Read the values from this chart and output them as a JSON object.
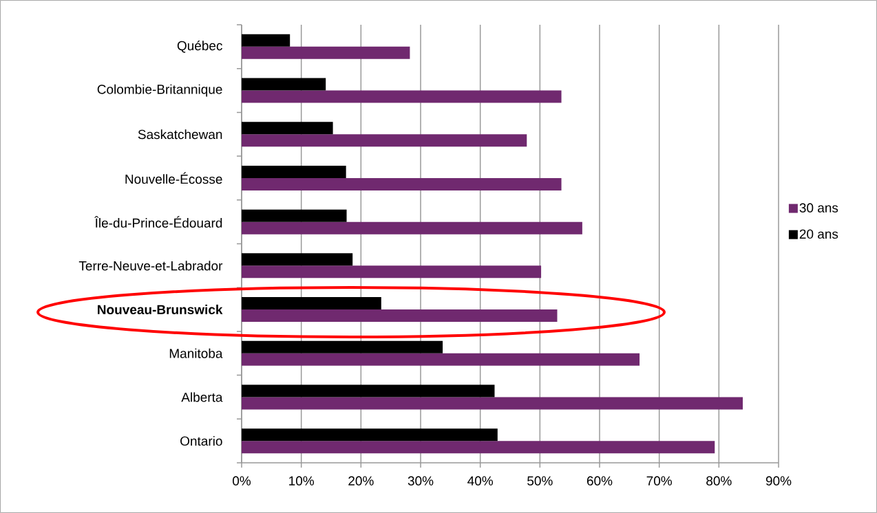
{
  "chart_data": {
    "type": "bar",
    "orientation": "horizontal",
    "categories": [
      "Québec",
      "Colombie-Britannique",
      "Saskatchewan",
      "Nouvelle-Écosse",
      "Île-du-Prince-Édouard",
      "Terre-Neuve-et-Labrador",
      "**Nouveau-Brunswick**",
      "Manitoba",
      "Alberta",
      "Ontario"
    ],
    "series": [
      {
        "name": "30 ans",
        "color": "#70296f",
        "values": [
          28.2,
          53.6,
          47.8,
          53.6,
          57.1,
          50.2,
          52.9,
          66.7,
          84.0,
          79.3
        ]
      },
      {
        "name": "20 ans",
        "color": "#000000",
        "values": [
          8.1,
          14.1,
          15.3,
          17.5,
          17.6,
          18.6,
          23.4,
          33.7,
          42.4,
          42.9
        ]
      }
    ],
    "xlim": [
      0,
      90
    ],
    "xticks": [
      {
        "value": 0,
        "label": "0%"
      },
      {
        "value": 10,
        "label": "10%"
      },
      {
        "value": 20,
        "label": "20%"
      },
      {
        "value": 30,
        "label": "30%"
      },
      {
        "value": 40,
        "label": "40%"
      },
      {
        "value": 50,
        "label": "50%"
      },
      {
        "value": 60,
        "label": "60%"
      },
      {
        "value": 70,
        "label": "70%"
      },
      {
        "value": 80,
        "label": "80%"
      },
      {
        "value": 90,
        "label": "90%"
      }
    ],
    "grid": "x",
    "legend": "right"
  }
}
